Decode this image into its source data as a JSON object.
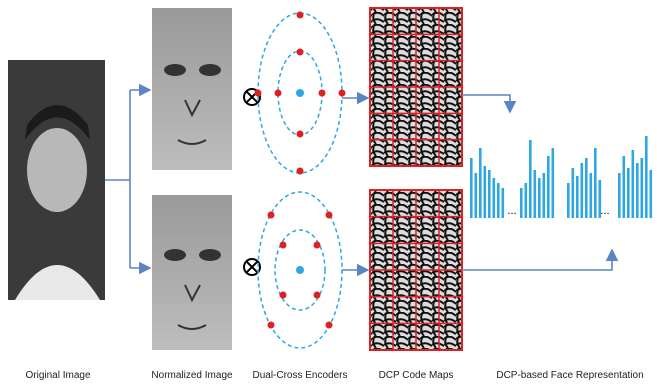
{
  "labels": {
    "original": "Original Image",
    "normalized": "Normalized Image",
    "encoders": "Dual-Cross Encoders",
    "code_maps": "DCP Code Maps",
    "representation": "DCP-based Face Representation"
  },
  "ellipses": [
    "...",
    "..."
  ]
}
